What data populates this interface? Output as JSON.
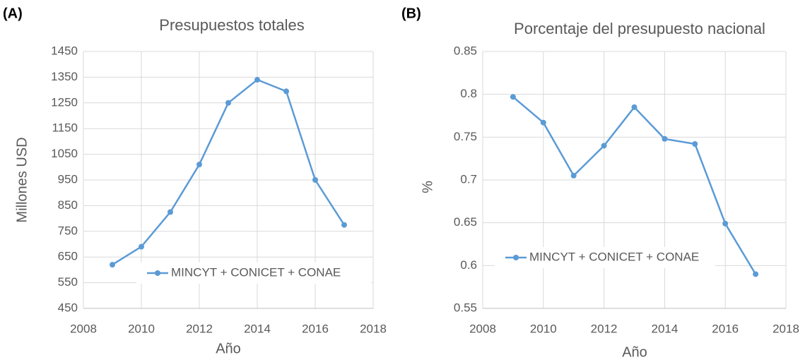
{
  "chart_data": [
    {
      "type": "line",
      "panel_label": "(A)",
      "title": "Presupuestos totales",
      "x_label": "Año",
      "y_label": "Millones USD",
      "x": [
        2009,
        2010,
        2011,
        2012,
        2013,
        2014,
        2015,
        2016,
        2017
      ],
      "series": [
        {
          "name": "MINCYT + CONICET + CONAE",
          "color": "#5b9bd5",
          "values": [
            620,
            690,
            825,
            1010,
            1250,
            1340,
            1295,
            950,
            775
          ]
        }
      ],
      "xlim": [
        2008,
        2018
      ],
      "xticks": [
        2008,
        2010,
        2012,
        2014,
        2016,
        2018
      ],
      "ylim": [
        450,
        1450
      ],
      "yticks": [
        450,
        550,
        650,
        750,
        850,
        950,
        1050,
        1150,
        1250,
        1350,
        1450
      ],
      "grid": true,
      "legend": "lower right"
    },
    {
      "type": "line",
      "panel_label": "(B)",
      "title": "Porcentaje del presupuesto nacional",
      "x_label": "Año",
      "y_label": "%",
      "x": [
        2009,
        2010,
        2011,
        2012,
        2013,
        2014,
        2015,
        2016,
        2017
      ],
      "series": [
        {
          "name": "MINCYT + CONICET + CONAE",
          "color": "#5b9bd5",
          "values": [
            0.797,
            0.767,
            0.705,
            0.74,
            0.785,
            0.748,
            0.742,
            0.649,
            0.59
          ]
        }
      ],
      "xlim": [
        2008,
        2018
      ],
      "xticks": [
        2008,
        2010,
        2012,
        2014,
        2016,
        2018
      ],
      "ylim": [
        0.55,
        0.85
      ],
      "yticks": [
        0.55,
        0.6,
        0.65,
        0.7,
        0.75,
        0.8,
        0.85
      ],
      "grid": true,
      "legend": "lower left"
    }
  ]
}
